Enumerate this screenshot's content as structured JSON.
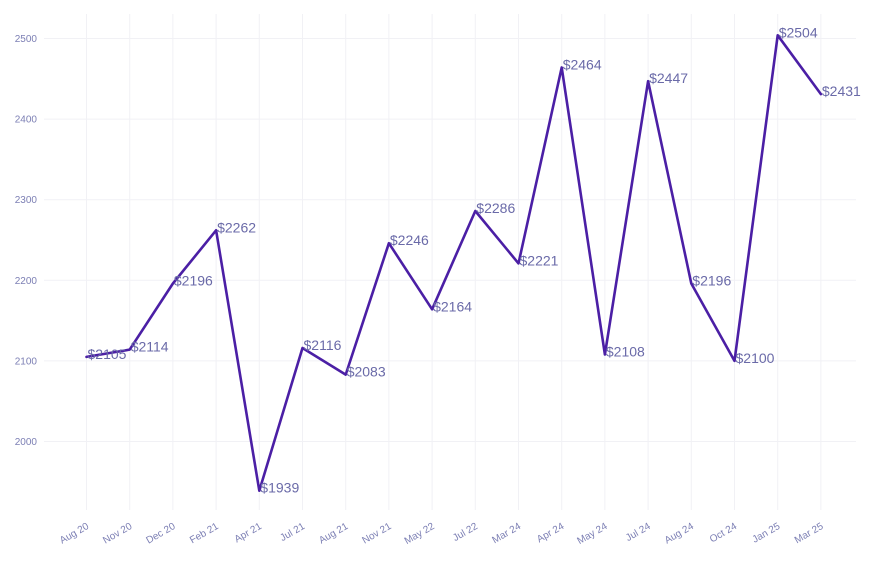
{
  "chart_data": {
    "type": "line",
    "title": "",
    "xlabel": "",
    "ylabel": "",
    "categories": [
      "Aug 20",
      "Nov 20",
      "Dec 20",
      "Feb 21",
      "Apr 21",
      "Jul 21",
      "Aug 21",
      "Nov 21",
      "May 22",
      "Jul 22",
      "Mar 24",
      "Apr 24",
      "May 24",
      "Jul 24",
      "Aug 24",
      "Oct 24",
      "Jan 25",
      "Mar 25"
    ],
    "values": [
      2105,
      2114,
      2196,
      2262,
      1939,
      2116,
      2083,
      2246,
      2164,
      2286,
      2221,
      2464,
      2108,
      2447,
      2196,
      2100,
      2504,
      2431
    ],
    "data_labels": [
      "$2105",
      "$2114",
      "$2196",
      "$2262",
      "$1939",
      "$2116",
      "$2083",
      "$2246",
      "$2164",
      "$2286",
      "$2221",
      "$2464",
      "$2108",
      "$2447",
      "$2196",
      "$2100",
      "$2504",
      "$2431"
    ],
    "y_ticks": [
      2000,
      2100,
      2200,
      2300,
      2400,
      2500
    ],
    "ylim": [
      1915,
      2530
    ],
    "grid": true,
    "legend": "none",
    "line_color": "#4b1fa5",
    "label_color": "#6a6aa8",
    "tick_color": "#7c7fb4",
    "grid_color": "#f1f1f5"
  }
}
